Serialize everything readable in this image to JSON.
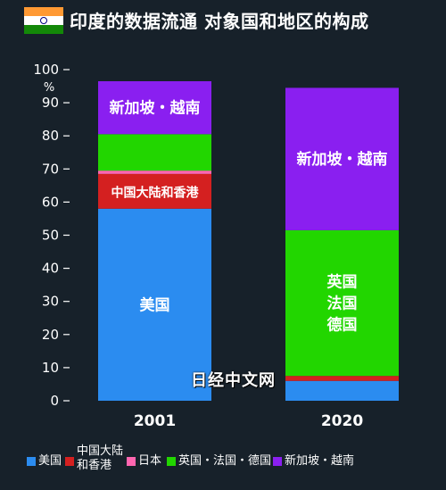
{
  "header": {
    "title": "印度的数据流通 对象国和地区的构成",
    "flag_icon": "india-flag-icon",
    "flag_colors": {
      "saffron": "#ff9933",
      "white": "#ffffff",
      "green": "#138808",
      "chakra": "#000080"
    }
  },
  "watermark": "日经中文网",
  "colors": {
    "background": "#17212a",
    "usa": "#2b8cf0",
    "china": "#d42020",
    "japan": "#ff66b0",
    "europe": "#22d600",
    "sea": "#8a1ff0"
  },
  "chart_data": {
    "type": "bar",
    "stacked": true,
    "categories": [
      "2001",
      "2020"
    ],
    "ylim": [
      0,
      100
    ],
    "yticks": [
      0,
      10,
      20,
      30,
      40,
      50,
      60,
      70,
      80,
      90,
      100
    ],
    "yunit": "%",
    "grid": false,
    "legend_position": "bottom",
    "series": [
      {
        "key": "usa",
        "name": "美国",
        "values": [
          58,
          6
        ],
        "segment_labels": [
          "美国",
          ""
        ]
      },
      {
        "key": "china",
        "name": "中国大陆\n和香港",
        "values": [
          10.5,
          1.5
        ],
        "segment_labels": [
          "中国大陆和香港",
          ""
        ]
      },
      {
        "key": "japan",
        "name": "日本",
        "values": [
          1,
          0
        ],
        "segment_labels": [
          "",
          ""
        ]
      },
      {
        "key": "europe",
        "name": "英国・法国・德国",
        "values": [
          11,
          44
        ],
        "segment_labels": [
          "",
          "英国\n法国\n德国"
        ]
      },
      {
        "key": "sea",
        "name": "新加坡・越南",
        "values": [
          16,
          43
        ],
        "segment_labels": [
          "新加坡・越南",
          "新加坡・越南"
        ]
      }
    ]
  }
}
